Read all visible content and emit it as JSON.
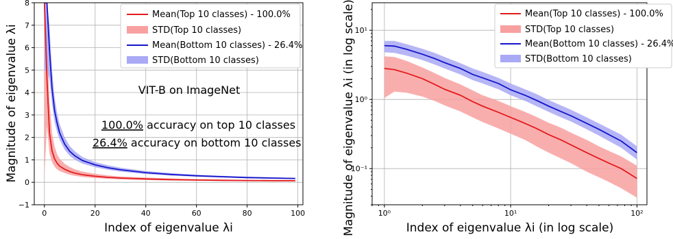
{
  "chart_data": [
    {
      "type": "line",
      "xlabel": "Index of eigenvalue λi",
      "ylabel": "Magnitude of eigenvalue λi",
      "xlim": [
        -4,
        102
      ],
      "ylim": [
        -1,
        8
      ],
      "xticks": [
        "0",
        "20",
        "40",
        "60",
        "80",
        "100"
      ],
      "yticks": [
        "−1",
        "0",
        "1",
        "2",
        "3",
        "4",
        "5",
        "6",
        "7",
        "8"
      ],
      "grid": true,
      "legend_position": "top-right",
      "annotations": {
        "model": "VIT-B on ImageNet",
        "top_pct": "100.0%",
        "top_rest": " accuracy on top 10 classes",
        "bottom_pct": "26.4%",
        "bottom_rest": " accuracy on bottom 10 classes"
      },
      "series": [
        {
          "name": "Mean(Top 10 classes) - 100.0%",
          "color": "#e41a1c",
          "x": [
            0,
            1,
            2,
            3,
            4,
            5,
            6,
            8,
            10,
            12,
            15,
            20,
            25,
            30,
            40,
            50,
            60,
            70,
            80,
            90,
            99
          ],
          "values": [
            8.0,
            4.6,
            2.2,
            1.4,
            1.05,
            0.85,
            0.72,
            0.58,
            0.48,
            0.41,
            0.34,
            0.27,
            0.22,
            0.19,
            0.15,
            0.12,
            0.1,
            0.09,
            0.08,
            0.075,
            0.07
          ]
        },
        {
          "name": "STD(Top 10 classes)",
          "color": "#f8a0a0",
          "x": [
            0,
            1,
            2,
            3,
            4,
            5,
            6,
            8,
            10,
            12,
            15,
            20,
            25,
            30,
            40,
            50,
            60,
            70,
            80,
            90,
            99
          ],
          "lower": [
            0.3,
            2.5,
            1.3,
            0.9,
            0.7,
            0.58,
            0.5,
            0.41,
            0.34,
            0.29,
            0.24,
            0.19,
            0.16,
            0.13,
            0.1,
            0.08,
            0.07,
            0.06,
            0.05,
            0.045,
            0.04
          ],
          "upper": [
            8.0,
            6.8,
            3.6,
            2.2,
            1.6,
            1.25,
            1.05,
            0.82,
            0.68,
            0.58,
            0.48,
            0.38,
            0.31,
            0.26,
            0.21,
            0.17,
            0.14,
            0.12,
            0.11,
            0.1,
            0.1
          ]
        },
        {
          "name": "Mean(Bottom 10 classes) - 26.4%",
          "color": "#1515cc",
          "x": [
            0,
            1,
            2,
            3,
            4,
            5,
            6,
            8,
            10,
            12,
            15,
            20,
            25,
            30,
            40,
            50,
            60,
            70,
            80,
            90,
            99
          ],
          "values": [
            8.0,
            8.0,
            5.9,
            4.2,
            3.2,
            2.65,
            2.2,
            1.7,
            1.38,
            1.18,
            0.97,
            0.78,
            0.65,
            0.56,
            0.43,
            0.35,
            0.29,
            0.25,
            0.21,
            0.19,
            0.17
          ]
        },
        {
          "name": "STD(Bottom 10 classes)",
          "color": "#a9a9f5",
          "x": [
            0,
            1,
            2,
            3,
            4,
            5,
            6,
            8,
            10,
            12,
            15,
            20,
            25,
            30,
            40,
            50,
            60,
            70,
            80,
            90,
            99
          ],
          "lower": [
            5.0,
            5.0,
            4.6,
            3.5,
            2.7,
            2.25,
            1.9,
            1.45,
            1.18,
            1.0,
            0.83,
            0.67,
            0.56,
            0.48,
            0.37,
            0.3,
            0.25,
            0.21,
            0.18,
            0.16,
            0.14
          ],
          "upper": [
            8.0,
            8.0,
            7.0,
            5.0,
            3.8,
            3.1,
            2.6,
            2.0,
            1.62,
            1.38,
            1.13,
            0.9,
            0.76,
            0.65,
            0.5,
            0.41,
            0.34,
            0.29,
            0.25,
            0.22,
            0.2
          ]
        }
      ]
    },
    {
      "type": "line",
      "xlabel": "Index of eigenvalue λi (in log scale)",
      "ylabel": "Magnitude of eigenvalue λi (in log scale)",
      "xscale": "log",
      "yscale": "log",
      "xlim": [
        0.8,
        120
      ],
      "ylim": [
        0.03,
        25
      ],
      "xticks": [
        "10⁰",
        "10¹",
        "10²"
      ],
      "yticks": [
        "10⁻¹",
        "10⁰",
        "10¹"
      ],
      "grid": true,
      "legend_position": "top-right",
      "series": [
        {
          "name": "Mean(Top 10 classes) - 100.0%",
          "color": "#e41a1c",
          "x": [
            1,
            1.2,
            1.5,
            2,
            2.5,
            3,
            4,
            5,
            6,
            8,
            10,
            13,
            16,
            20,
            25,
            30,
            40,
            50,
            60,
            75,
            100
          ],
          "values": [
            2.8,
            2.7,
            2.4,
            2.0,
            1.65,
            1.4,
            1.15,
            0.93,
            0.8,
            0.65,
            0.55,
            0.45,
            0.38,
            0.31,
            0.26,
            0.22,
            0.17,
            0.14,
            0.12,
            0.1,
            0.072
          ]
        },
        {
          "name": "STD(Top 10 classes)",
          "color": "#f8a0a0",
          "x": [
            1,
            1.2,
            1.5,
            2,
            2.5,
            3,
            4,
            5,
            6,
            8,
            10,
            13,
            16,
            20,
            25,
            30,
            40,
            50,
            60,
            75,
            100
          ],
          "lower": [
            1.05,
            1.3,
            1.25,
            1.1,
            0.95,
            0.82,
            0.67,
            0.55,
            0.47,
            0.38,
            0.32,
            0.26,
            0.21,
            0.17,
            0.14,
            0.12,
            0.09,
            0.075,
            0.064,
            0.052,
            0.038
          ],
          "upper": [
            4.2,
            4.1,
            3.6,
            2.9,
            2.4,
            2.05,
            1.65,
            1.35,
            1.15,
            0.95,
            0.8,
            0.66,
            0.56,
            0.46,
            0.39,
            0.33,
            0.26,
            0.21,
            0.18,
            0.15,
            0.11
          ]
        },
        {
          "name": "Mean(Bottom 10 classes) - 26.4%",
          "color": "#1515cc",
          "x": [
            1,
            1.2,
            1.5,
            2,
            2.5,
            3,
            4,
            5,
            6,
            8,
            10,
            13,
            16,
            20,
            25,
            30,
            40,
            50,
            60,
            75,
            100
          ],
          "values": [
            6.0,
            5.9,
            5.3,
            4.5,
            3.9,
            3.4,
            2.8,
            2.3,
            2.05,
            1.7,
            1.38,
            1.15,
            0.97,
            0.8,
            0.67,
            0.58,
            0.45,
            0.37,
            0.31,
            0.25,
            0.17
          ]
        },
        {
          "name": "STD(Bottom 10 classes)",
          "color": "#a9a9f5",
          "x": [
            1,
            1.2,
            1.5,
            2,
            2.5,
            3,
            4,
            5,
            6,
            8,
            10,
            13,
            16,
            20,
            25,
            30,
            40,
            50,
            60,
            75,
            100
          ],
          "lower": [
            4.8,
            4.7,
            4.3,
            3.7,
            3.2,
            2.8,
            2.3,
            1.9,
            1.7,
            1.4,
            1.15,
            0.95,
            0.8,
            0.66,
            0.55,
            0.48,
            0.37,
            0.3,
            0.25,
            0.2,
            0.135
          ],
          "upper": [
            7.0,
            7.0,
            6.3,
            5.4,
            4.7,
            4.1,
            3.35,
            2.8,
            2.5,
            2.05,
            1.7,
            1.4,
            1.2,
            0.98,
            0.82,
            0.71,
            0.55,
            0.45,
            0.38,
            0.31,
            0.21
          ]
        }
      ]
    }
  ]
}
